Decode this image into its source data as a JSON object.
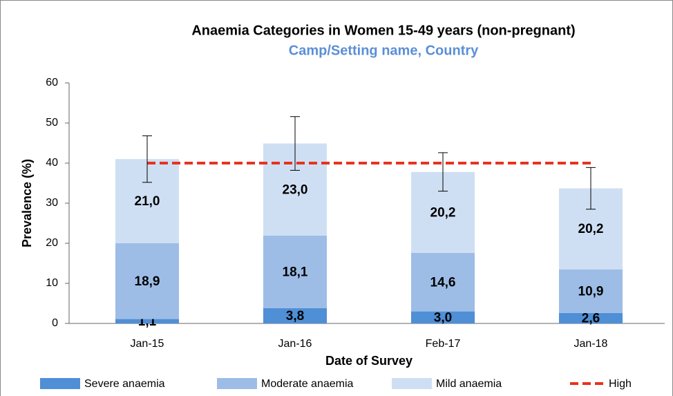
{
  "chart_data": {
    "type": "stacked_bar",
    "title": "Anaemia Categories in Women 15-49 years (non-pregnant)",
    "subtitle": "Camp/Setting name, Country",
    "y_label": "Prevalence (%)",
    "x_label": "Date of Survey",
    "categories": [
      "Jan-15",
      "Jan-16",
      "Feb-17",
      "Jan-18"
    ],
    "series": [
      {
        "name": "Severe anaemia",
        "color": "#4f8fd6",
        "values": [
          1.1,
          3.8,
          3.0,
          2.6
        ],
        "value_labels": [
          "1,1",
          "3,8",
          "3,0",
          "2,6"
        ]
      },
      {
        "name": "Moderate anaemia",
        "color": "#9dbde6",
        "values": [
          18.9,
          18.1,
          14.6,
          10.9
        ],
        "value_labels": [
          "18,9",
          "18,1",
          "14,6",
          "10,9"
        ]
      },
      {
        "name": "Mild anaemia",
        "color": "#cfdff3",
        "values": [
          21.0,
          23.0,
          20.2,
          20.2
        ],
        "value_labels": [
          "21,0",
          "23,0",
          "20,2",
          "20,2"
        ]
      }
    ],
    "errors": [
      5.8,
      6.7,
      4.8,
      5.2
    ],
    "threshold": {
      "name": "High",
      "value": 40,
      "color": "#e8321f"
    },
    "ylim": [
      0,
      60
    ],
    "yticks": [
      0,
      10,
      20,
      30,
      40,
      50,
      60
    ],
    "grid": false
  }
}
